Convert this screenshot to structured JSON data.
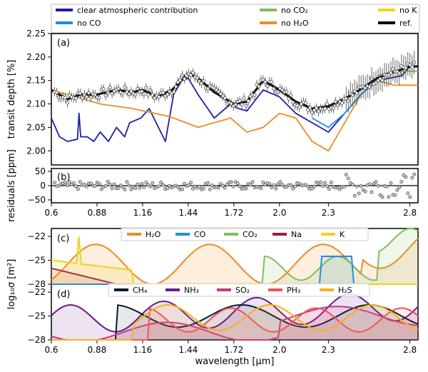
{
  "figure": {
    "top_legend": [
      {
        "label": "clear atmospheric contribution",
        "color": "#1b1fa8"
      },
      {
        "label": "no CO",
        "color": "#1f8fe0"
      },
      {
        "label": "no CO₂",
        "color": "#7fbf5a"
      },
      {
        "label": "no H₂O",
        "color": "#f08a24"
      },
      {
        "label": "no K",
        "color": "#f2d21b"
      },
      {
        "label": "ref.",
        "color": "#000000"
      }
    ]
  },
  "chart_data": [
    {
      "panel": "(a)",
      "type": "line",
      "ylabel": "transit depth [%]",
      "xlim": [
        0.6,
        2.85
      ],
      "ylim": [
        1.97,
        2.25
      ],
      "yticks": [
        "2.00",
        "2.05",
        "2.10",
        "2.15",
        "2.20",
        "2.25"
      ],
      "series": [
        {
          "name": "ref.",
          "color": "#000000",
          "x": [
            0.6,
            0.7,
            0.78,
            0.88,
            1.0,
            1.1,
            1.16,
            1.25,
            1.34,
            1.44,
            1.5,
            1.6,
            1.72,
            1.8,
            1.9,
            2.0,
            2.1,
            2.2,
            2.3,
            2.45,
            2.6,
            2.8,
            2.85
          ],
          "y": [
            2.13,
            2.11,
            2.12,
            2.12,
            2.13,
            2.125,
            2.13,
            2.115,
            2.13,
            2.165,
            2.155,
            2.125,
            2.1,
            2.105,
            2.15,
            2.13,
            2.105,
            2.09,
            2.095,
            2.12,
            2.155,
            2.18,
            2.18
          ]
        },
        {
          "name": "clear atmospheric contribution",
          "color": "#1b1fa8",
          "x": [
            0.6,
            0.65,
            0.7,
            0.76,
            0.77,
            0.78,
            0.82,
            0.86,
            0.9,
            0.95,
            1.0,
            1.05,
            1.08,
            1.15,
            1.2,
            1.3,
            1.35,
            1.4,
            1.44,
            1.5,
            1.6,
            1.7,
            1.75,
            1.8,
            1.9,
            2.0,
            2.1,
            2.2,
            2.3,
            2.4,
            2.5,
            2.6,
            2.75,
            2.8,
            2.85
          ],
          "y": [
            2.07,
            2.03,
            2.02,
            2.025,
            2.08,
            2.03,
            2.03,
            2.02,
            2.04,
            2.02,
            2.05,
            2.03,
            2.06,
            2.07,
            2.09,
            2.02,
            2.12,
            2.15,
            2.155,
            2.12,
            2.07,
            2.1,
            2.09,
            2.085,
            2.13,
            2.115,
            2.08,
            2.06,
            2.04,
            2.08,
            2.12,
            2.15,
            2.16,
            2.18,
            2.18
          ]
        },
        {
          "name": "no CO",
          "color": "#1f8fe0",
          "x": [
            2.2,
            2.3,
            2.4,
            2.5,
            2.6
          ],
          "y": [
            2.07,
            2.05,
            2.08,
            2.12,
            2.15
          ]
        },
        {
          "name": "no CO₂",
          "color": "#7fbf5a",
          "x": [
            2.6,
            2.7,
            2.8,
            2.85
          ],
          "y": [
            2.16,
            2.17,
            2.17,
            2.17
          ]
        },
        {
          "name": "no H₂O",
          "color": "#f08a24",
          "x": [
            0.6,
            0.9,
            1.1,
            1.3,
            1.35,
            1.5,
            1.7,
            1.8,
            1.9,
            2.0,
            2.1,
            2.2,
            2.3,
            2.4,
            2.5,
            2.6,
            2.7,
            2.8,
            2.85
          ],
          "y": [
            2.13,
            2.1,
            2.09,
            2.075,
            2.07,
            2.05,
            2.07,
            2.04,
            2.05,
            2.08,
            2.07,
            2.02,
            2.0,
            2.06,
            2.12,
            2.15,
            2.14,
            2.14,
            2.14
          ]
        },
        {
          "name": "no K",
          "color": "#f2d21b",
          "x": [
            0.6,
            0.7,
            0.75,
            0.78,
            0.85,
            0.9
          ],
          "y": [
            2.13,
            2.11,
            2.115,
            2.12,
            2.115,
            2.12
          ]
        }
      ]
    },
    {
      "panel": "(b)",
      "type": "scatter",
      "ylabel": "residuals [ppm]",
      "ylim": [
        -60,
        60
      ],
      "yticks": [
        "50",
        "0",
        "−50"
      ]
    },
    {
      "panel": "(c)",
      "type": "area",
      "ylabel": "log₁₀σ [m²]",
      "ylim": [
        -28,
        -21
      ],
      "yticks": [
        "−22",
        "−25",
        "−28"
      ],
      "legend": [
        {
          "name": "H₂O",
          "color": "#f08a24"
        },
        {
          "name": "CO",
          "color": "#1f8fe0"
        },
        {
          "name": "CO₂",
          "color": "#7fbf5a"
        },
        {
          "name": "Na",
          "color": "#a0184a"
        },
        {
          "name": "K",
          "color": "#f2d21b"
        }
      ]
    },
    {
      "panel": "(d)",
      "type": "area",
      "ylim": [
        -28,
        -21
      ],
      "yticks": [
        "−22",
        "−25",
        "−28"
      ],
      "xlabel": "wavelength [μm]",
      "xticks": [
        "0.6",
        "0.88",
        "1.16",
        "1.44",
        "1.72",
        "2.0",
        "2.3",
        "2.8"
      ],
      "legend": [
        {
          "name": "CH₄",
          "color": "#0b1a2e"
        },
        {
          "name": "NH₃",
          "color": "#6a1b8a"
        },
        {
          "name": "SO₂",
          "color": "#c2398a"
        },
        {
          "name": "PH₃",
          "color": "#f0505a"
        },
        {
          "name": "H₂S",
          "color": "#f5b21b"
        }
      ]
    }
  ]
}
